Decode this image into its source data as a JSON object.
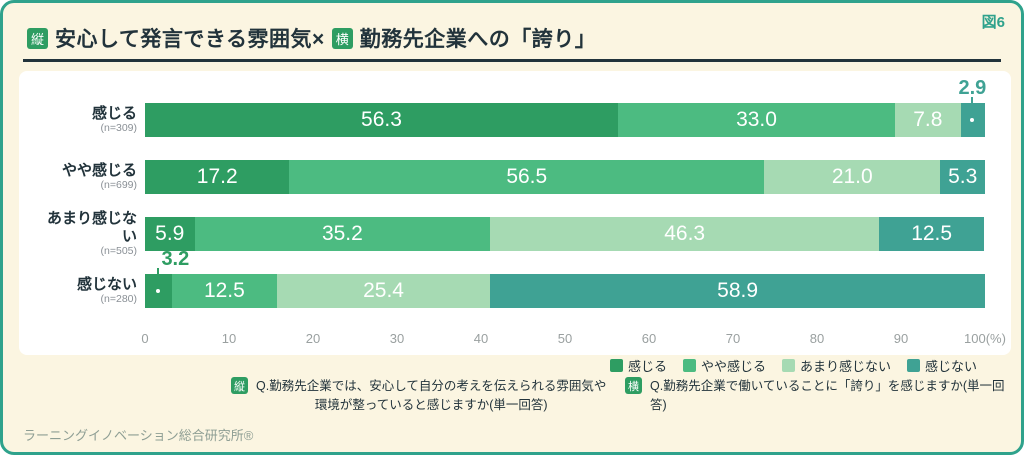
{
  "figure_label": "図6",
  "title": {
    "badge_vertical": "縦",
    "text_vertical": "安心して発言できる雰囲気×",
    "badge_horizontal": "横",
    "text_horizontal": "勤務先企業への「誇り」"
  },
  "chart_data": {
    "type": "bar",
    "stacked": true,
    "orientation": "horizontal",
    "categories": [
      "感じる",
      "やや感じる",
      "あまり感じない",
      "感じない"
    ],
    "sample_sizes": [
      "(n=309)",
      "(n=699)",
      "(n=505)",
      "(n=280)"
    ],
    "series": [
      {
        "name": "感じる",
        "color": "#2e9d62",
        "values": [
          56.3,
          17.2,
          5.9,
          3.2
        ]
      },
      {
        "name": "やや感じる",
        "color": "#4cbb81",
        "values": [
          33.0,
          56.5,
          35.2,
          12.5
        ]
      },
      {
        "name": "あまり感じない",
        "color": "#a6dab3",
        "values": [
          7.8,
          21.0,
          46.3,
          25.4
        ]
      },
      {
        "name": "感じない",
        "color": "#3fa294",
        "values": [
          2.9,
          5.3,
          12.5,
          58.9
        ]
      }
    ],
    "xlim": [
      0,
      100
    ],
    "xticks": [
      "0",
      "10",
      "20",
      "30",
      "40",
      "50",
      "60",
      "70",
      "80",
      "90",
      "100(%)"
    ],
    "legend_position": "bottom-right",
    "callouts": [
      {
        "row": 0,
        "series": 3,
        "x_percent": 98.5,
        "text_align": "center"
      },
      {
        "row": 3,
        "series": 0,
        "x_percent": 1.6,
        "text_align": "right-of-line"
      }
    ]
  },
  "footnotes": {
    "vertical": {
      "badge": "縦",
      "line1": "Q.勤務先企業では、安心して自分の考えを伝えられる雰囲気や",
      "line2": "環境が整っていると感じますか(単一回答)"
    },
    "horizontal": {
      "badge": "横",
      "text": "Q.勤務先企業で働いていることに「誇り」を感じますか(単一回答)"
    }
  },
  "source": "ラーニングイノベーション総合研究所®"
}
